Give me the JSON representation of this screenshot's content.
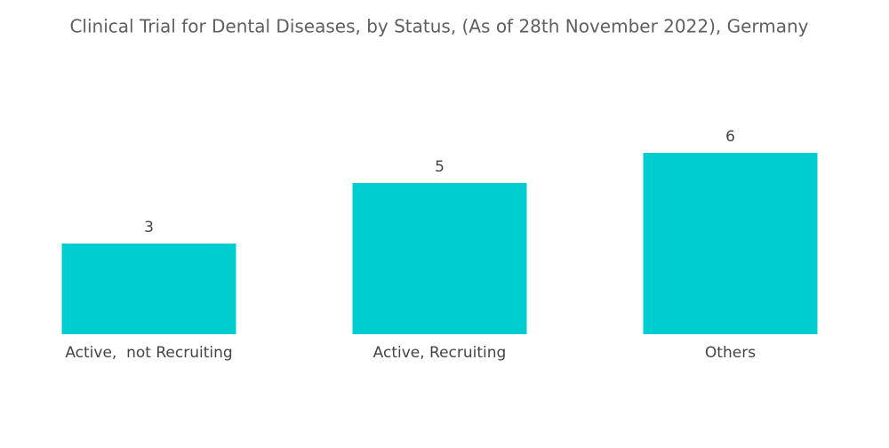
{
  "chart_data": {
    "type": "bar",
    "title": "Clinical Trial for Dental Diseases, by Status, (As of 28th November 2022), Germany",
    "categories": [
      "Active,  not Recruiting",
      "Active, Recruiting",
      "Others"
    ],
    "values": [
      3,
      5,
      6
    ],
    "color": "#00cdd0"
  }
}
